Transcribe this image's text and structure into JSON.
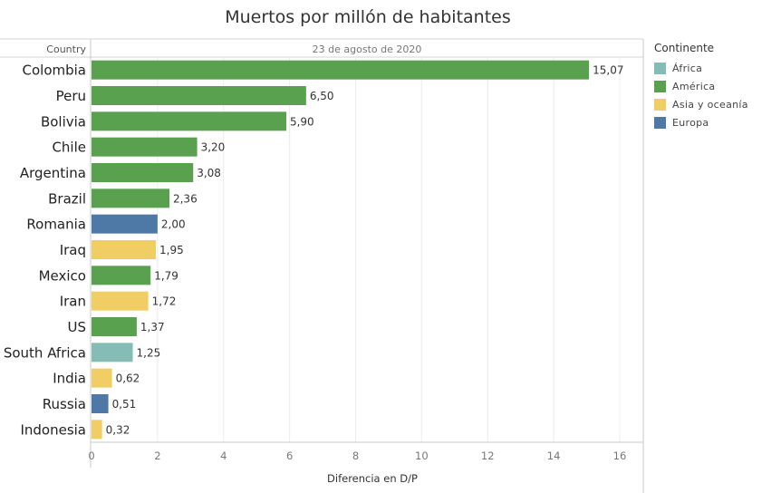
{
  "chart_data": {
    "type": "bar",
    "orientation": "horizontal",
    "title": "Muertos por millón de habitantes",
    "subtitle": "23 de agosto de 2020",
    "row_header": "Country",
    "xlabel": "Diferencia en D/P",
    "xlim": [
      0,
      16.6
    ],
    "xticks": [
      0,
      2,
      4,
      6,
      8,
      10,
      12,
      14,
      16
    ],
    "grid": true,
    "legend_position": "right",
    "legend": {
      "title": "Continente",
      "entries": [
        {
          "label": "África",
          "color": "#86BCB6"
        },
        {
          "label": "América",
          "color": "#59A14F"
        },
        {
          "label": "Asia y oceanía",
          "color": "#F1CE63"
        },
        {
          "label": "Europa",
          "color": "#4E79A7"
        }
      ]
    },
    "categories": [
      "Colombia",
      "Peru",
      "Bolivia",
      "Chile",
      "Argentina",
      "Brazil",
      "Romania",
      "Iraq",
      "Mexico",
      "Iran",
      "US",
      "South Africa",
      "India",
      "Russia",
      "Indonesia"
    ],
    "values": [
      15.07,
      6.5,
      5.9,
      3.2,
      3.08,
      2.36,
      2.0,
      1.95,
      1.79,
      1.72,
      1.37,
      1.25,
      0.62,
      0.51,
      0.32
    ],
    "value_labels": [
      "15,07",
      "6,50",
      "5,90",
      "3,20",
      "3,08",
      "2,36",
      "2,00",
      "1,95",
      "1,79",
      "1,72",
      "1,37",
      "1,25",
      "0,62",
      "0,51",
      "0,32"
    ],
    "continent": [
      "América",
      "América",
      "América",
      "América",
      "América",
      "América",
      "Europa",
      "Asia y oceanía",
      "América",
      "Asia y oceanía",
      "América",
      "África",
      "Asia y oceanía",
      "Europa",
      "Asia y oceanía"
    ]
  }
}
